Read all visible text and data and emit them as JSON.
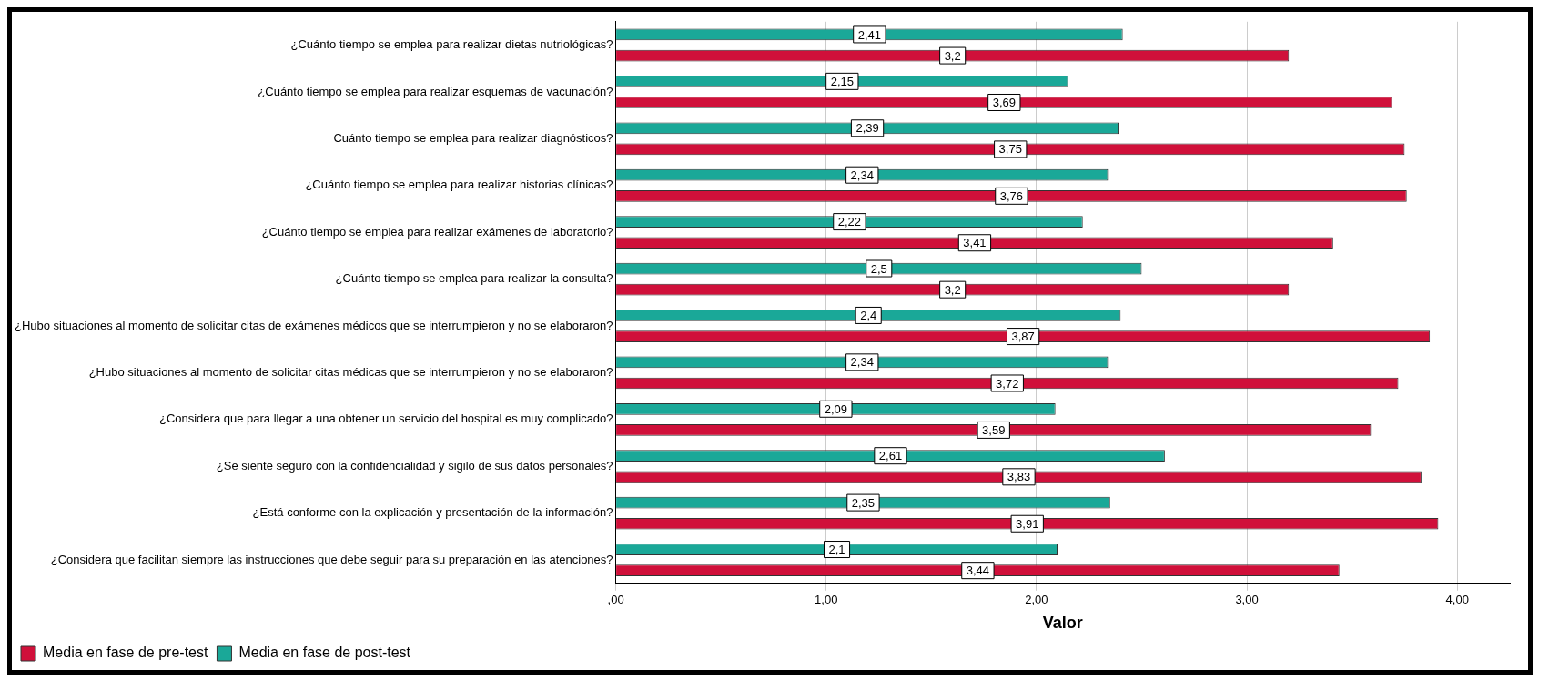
{
  "chart_data": {
    "type": "bar",
    "orientation": "horizontal",
    "xlabel": "Valor",
    "categories": [
      "¿Cuánto tiempo se emplea para realizar dietas nutriológicas?",
      "¿Cuánto tiempo se emplea para realizar esquemas de vacunación?",
      "Cuánto tiempo se emplea para realizar diagnósticos?",
      "¿Cuánto tiempo se emplea para realizar historias clínicas?",
      "¿Cuánto tiempo se emplea para realizar exámenes de laboratorio?",
      "¿Cuánto tiempo se emplea para realizar la consulta?",
      "¿Hubo situaciones al momento de solicitar citas de exámenes médicos que se interrumpieron y no se elaboraron?",
      "¿Hubo situaciones al momento de solicitar citas médicas que se interrumpieron y no se elaboraron?",
      "¿Considera que para llegar a una obtener un servicio del hospital es muy complicado?",
      "¿Se siente seguro con la confidencialidad y sigilo de sus datos personales?",
      "¿Está conforme con la explicación y presentación de la información?",
      "¿Considera que facilitan siempre las instrucciones que debe seguir para su preparación en las atenciones?"
    ],
    "series": [
      {
        "name": "Media en fase de post-test",
        "color": "#1aa898",
        "values": [
          2.41,
          2.15,
          2.39,
          2.34,
          2.22,
          2.5,
          2.4,
          2.34,
          2.09,
          2.61,
          2.35,
          2.1
        ],
        "value_labels": [
          "2,41",
          "2,15",
          "2,39",
          "2,34",
          "2,22",
          "2,5",
          "2,4",
          "2,34",
          "2,09",
          "2,61",
          "2,35",
          "2,1"
        ]
      },
      {
        "name": "Media en fase de pre-test",
        "color": "#d0103a",
        "values": [
          3.2,
          3.69,
          3.75,
          3.76,
          3.41,
          3.2,
          3.87,
          3.72,
          3.59,
          3.83,
          3.91,
          3.44
        ],
        "value_labels": [
          "3,2",
          "3,69",
          "3,75",
          "3,76",
          "3,41",
          "3,2",
          "3,87",
          "3,72",
          "3,59",
          "3,83",
          "3,91",
          "3,44"
        ]
      }
    ],
    "xlim": [
      0,
      4.25
    ],
    "xticks": [
      {
        "value": 0,
        "label": ",00"
      },
      {
        "value": 1,
        "label": "1,00"
      },
      {
        "value": 2,
        "label": "2,00"
      },
      {
        "value": 3,
        "label": "3,00"
      },
      {
        "value": 4,
        "label": "4,00"
      }
    ],
    "grid": "x",
    "legend": "bottom left"
  }
}
